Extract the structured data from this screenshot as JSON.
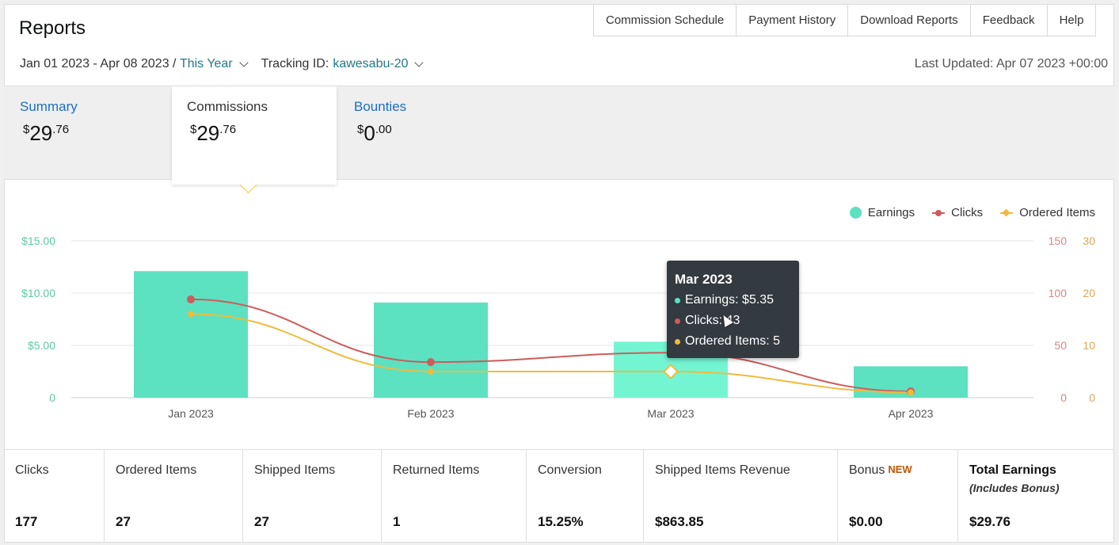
{
  "header": {
    "title": "Reports",
    "nav": [
      "Commission Schedule",
      "Payment History",
      "Download Reports",
      "Feedback",
      "Help"
    ],
    "date_range": "Jan 01 2023 - Apr 08 2023",
    "separator": " / ",
    "period": "This Year",
    "tracking_label": "Tracking ID:",
    "tracking_id": "kawesabu-20",
    "last_updated": "Last Updated: Apr 07 2023 +00:00"
  },
  "tabs": {
    "summary": {
      "label": "Summary",
      "dollars": "29",
      "cents": ".76"
    },
    "commissions": {
      "label": "Commissions",
      "dollars": "29",
      "cents": ".76"
    },
    "bounties": {
      "label": "Bounties",
      "dollars": "0",
      "cents": ".00"
    },
    "currency": "$"
  },
  "legend": {
    "earnings": "Earnings",
    "clicks": "Clicks",
    "ordered": "Ordered Items"
  },
  "tooltip": {
    "title": "Mar 2023",
    "earnings": "Earnings: $5.35",
    "clicks": "Clicks: 43",
    "ordered": "Ordered Items: 5"
  },
  "colors": {
    "earnings": "#5ce1c1",
    "earnings_hover": "#74f5d2",
    "clicks": "#cd5c5c",
    "ordered": "#efbb3c",
    "left_axis": "#5cc9a7"
  },
  "chart_data": {
    "type": "bar",
    "categories": [
      "Jan 2023",
      "Feb 2023",
      "Mar 2023",
      "Apr 2023"
    ],
    "series": [
      {
        "name": "Earnings",
        "type": "bar",
        "axis": "left",
        "values": [
          12.1,
          9.1,
          5.35,
          3.0
        ]
      },
      {
        "name": "Clicks",
        "type": "line",
        "axis": "right1",
        "values": [
          94,
          34,
          43,
          6
        ]
      },
      {
        "name": "Ordered Items",
        "type": "line",
        "axis": "right2",
        "values": [
          16,
          5,
          5,
          1
        ]
      }
    ],
    "y_left": {
      "ticks": [
        "$15.00",
        "$10.00",
        "$5.00",
        "0"
      ],
      "range": [
        0,
        15
      ]
    },
    "y_right1": {
      "ticks": [
        "150",
        "100",
        "50",
        "0"
      ],
      "range": [
        0,
        150
      ]
    },
    "y_right2": {
      "ticks": [
        "30",
        "20",
        "10",
        "0"
      ],
      "range": [
        0,
        30
      ]
    },
    "grid": true,
    "legend_position": "top-right"
  },
  "stats": [
    {
      "label": "Clicks",
      "value": "177"
    },
    {
      "label": "Ordered Items",
      "value": "27"
    },
    {
      "label": "Shipped Items",
      "value": "27"
    },
    {
      "label": "Returned Items",
      "value": "1"
    },
    {
      "label": "Conversion",
      "value": "15.25%"
    },
    {
      "label": "Shipped Items Revenue",
      "value": "$863.85"
    },
    {
      "label": "Bonus",
      "badge": "NEW",
      "value": "$0.00"
    },
    {
      "label": "Total Earnings",
      "sub": "(Includes Bonus)",
      "value": "$29.76"
    }
  ]
}
